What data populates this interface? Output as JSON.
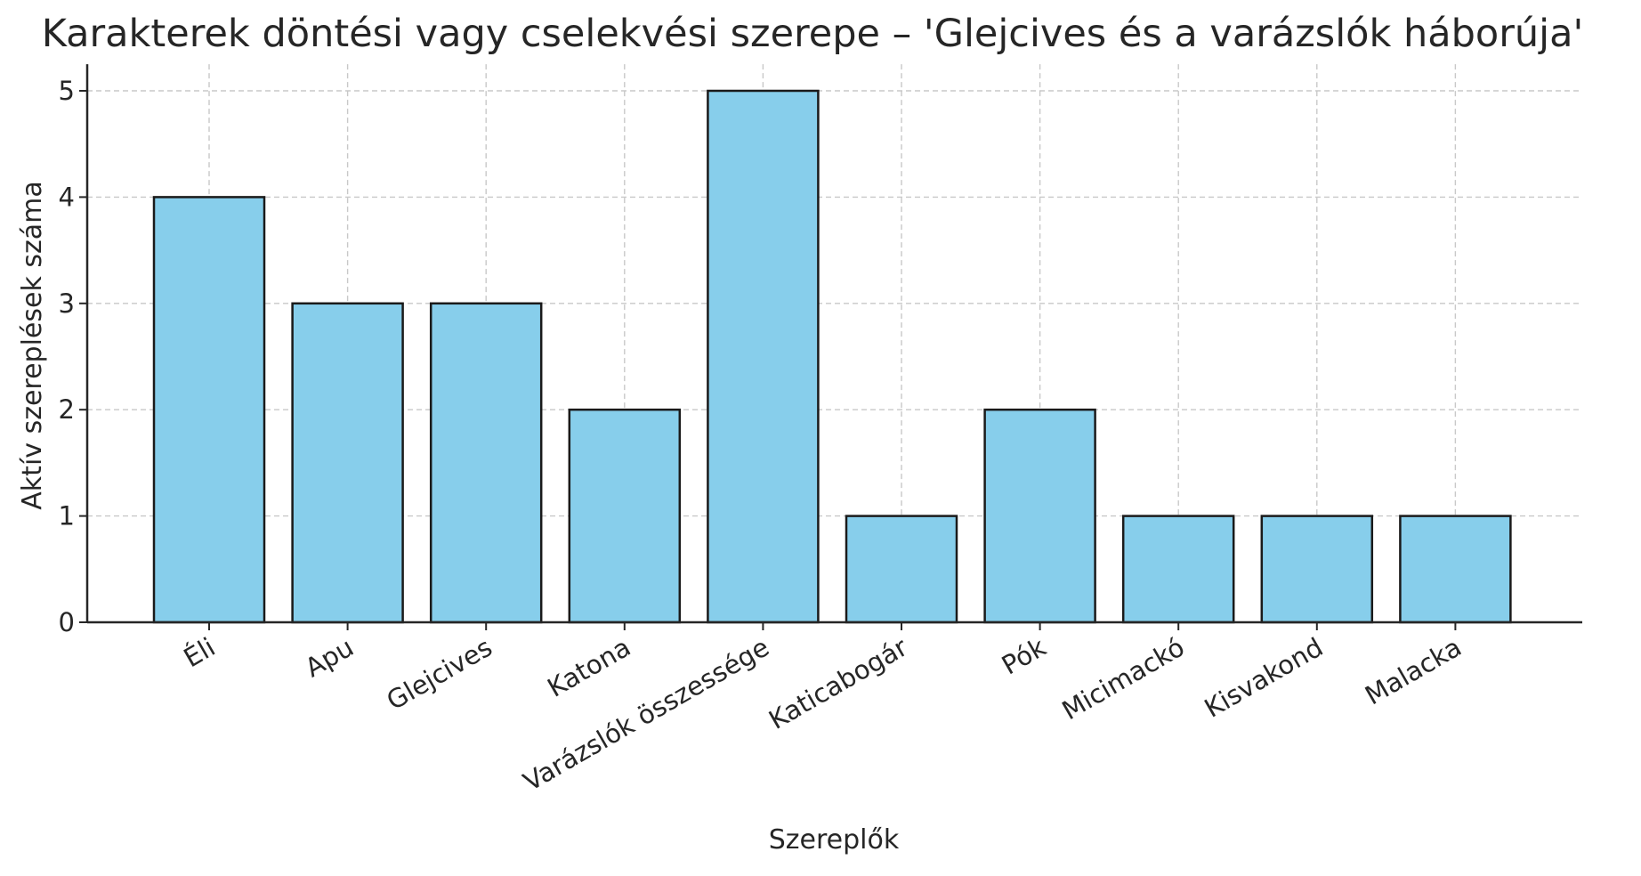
{
  "chart_data": {
    "type": "bar",
    "title": "Karakterek döntési vagy cselekvési szerepe – 'Glejcives és a varázslók háborúja'",
    "xlabel": "Szereplők",
    "ylabel": "Aktív szereplések száma",
    "categories": [
      "Éli",
      "Apu",
      "Glejcives",
      "Katona",
      "Varázslók összessége",
      "Katicabogár",
      "Pók",
      "Micimackó",
      "Kisvakond",
      "Malacka"
    ],
    "values": [
      4,
      3,
      3,
      2,
      5,
      1,
      2,
      1,
      1,
      1
    ],
    "yticks": [
      "0",
      "1",
      "2",
      "3",
      "4",
      "5"
    ],
    "ylim": [
      0,
      5.25
    ],
    "grid": true,
    "bar_color": "#87ceeb",
    "edge_color": "#1a1a1a"
  }
}
